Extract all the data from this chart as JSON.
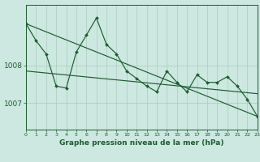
{
  "background_color": "#cce8e0",
  "plot_bg_color": "#cce8e0",
  "grid_color": "#aaccbb",
  "line_color": "#1e5c30",
  "marker_color": "#1e5c30",
  "xlabel": "Graphe pression niveau de la mer (hPa)",
  "xlabel_fontsize": 6.5,
  "ytick_labels": [
    "1007",
    "1008"
  ],
  "ytick_values": [
    1007.0,
    1008.0
  ],
  "ylim": [
    1006.3,
    1009.6
  ],
  "xlim": [
    0,
    23
  ],
  "hours": [
    0,
    1,
    2,
    3,
    4,
    5,
    6,
    7,
    8,
    9,
    10,
    11,
    12,
    13,
    14,
    15,
    16,
    17,
    18,
    19,
    20,
    21,
    22,
    23
  ],
  "series1": [
    1009.1,
    1008.65,
    1008.3,
    1007.45,
    1007.4,
    1008.35,
    1008.8,
    1009.25,
    1008.55,
    1008.3,
    1007.85,
    1007.65,
    1007.45,
    1007.3,
    1007.85,
    1007.55,
    1007.3,
    1007.75,
    1007.55,
    1007.55,
    1007.7,
    1007.45,
    1007.1,
    1006.65
  ],
  "line2_x": [
    0,
    23
  ],
  "line2_y": [
    1009.1,
    1006.65
  ],
  "line3_x": [
    0,
    23
  ],
  "line3_y": [
    1007.85,
    1007.25
  ],
  "xtick_labels": [
    "0",
    "1",
    "2",
    "3",
    "4",
    "5",
    "6",
    "7",
    "8",
    "9",
    "10",
    "11",
    "12",
    "13",
    "14",
    "15",
    "16",
    "17",
    "18",
    "19",
    "20",
    "21",
    "22",
    "23"
  ],
  "figsize": [
    3.2,
    2.0
  ],
  "dpi": 100
}
